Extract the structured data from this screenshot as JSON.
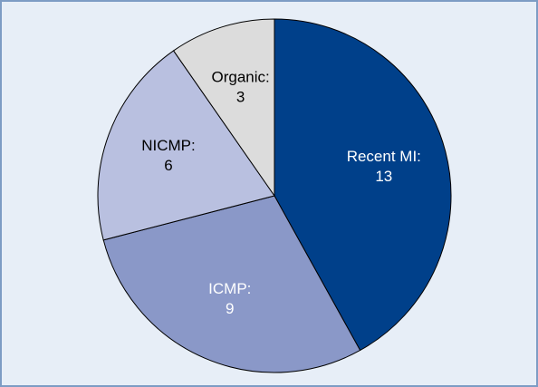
{
  "chart_data": {
    "type": "pie",
    "categories": [
      "Recent MI:",
      "ICMP:",
      "NICMP:",
      "Organic:"
    ],
    "values": [
      13,
      9,
      6,
      3
    ],
    "colors": [
      "#00408a",
      "#8a98c8",
      "#b9c0e0",
      "#dcdcdc"
    ],
    "label_colors": [
      "#ffffff",
      "#ffffff",
      "#000000",
      "#000000"
    ]
  }
}
